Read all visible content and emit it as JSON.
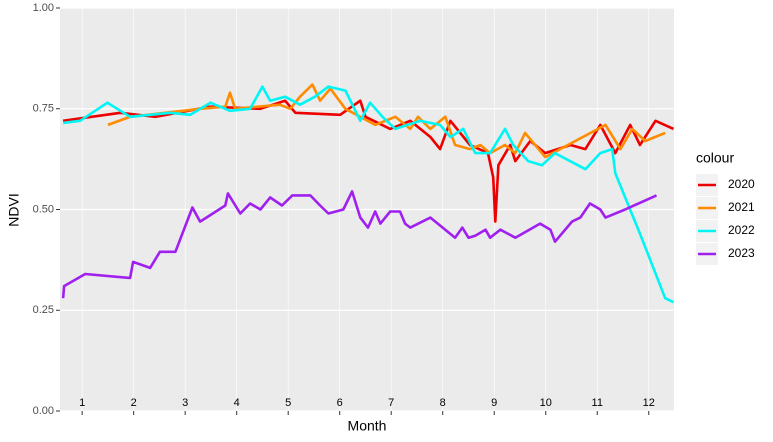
{
  "chart_data": {
    "type": "line",
    "xlabel": "Month",
    "ylabel": "NDVI",
    "legend_title": "colour",
    "xlim": [
      0.57,
      12.49
    ],
    "xticks": [
      1,
      2,
      3,
      4,
      5,
      6,
      7,
      8,
      9,
      10,
      11,
      12
    ],
    "ylim": [
      0,
      1
    ],
    "yticks": [
      {
        "value": 0,
        "label": "0.00"
      },
      {
        "value": 0.25,
        "label": "0.25"
      },
      {
        "value": 0.5,
        "label": "0.50"
      },
      {
        "value": 0.75,
        "label": "0.75"
      },
      {
        "value": 1,
        "label": "1.00"
      }
    ],
    "grid": true,
    "legend": "right",
    "series": [
      {
        "name": "2020",
        "color": "#ee0000",
        "x": [
          0.63,
          1.74,
          2.42,
          3.49,
          4.46,
          4.94,
          5.14,
          6.01,
          6.4,
          6.5,
          6.98,
          7.37,
          7.76,
          7.95,
          8.15,
          8.53,
          8.88,
          8.98,
          9.02,
          9.08,
          9.31,
          9.41,
          9.7,
          9.99,
          10.48,
          10.77,
          11.06,
          11.35,
          11.64,
          11.83,
          12.13,
          12.48
        ],
        "values": [
          0.72,
          0.74,
          0.73,
          0.755,
          0.75,
          0.77,
          0.74,
          0.735,
          0.77,
          0.73,
          0.7,
          0.72,
          0.68,
          0.65,
          0.72,
          0.66,
          0.64,
          0.58,
          0.47,
          0.61,
          0.66,
          0.62,
          0.67,
          0.64,
          0.66,
          0.65,
          0.71,
          0.64,
          0.71,
          0.66,
          0.72,
          0.7
        ]
      },
      {
        "name": "2021",
        "color": "#ff8c00",
        "x": [
          1.5,
          1.93,
          3.29,
          3.78,
          3.87,
          3.97,
          4.84,
          5.04,
          5.23,
          5.47,
          5.62,
          5.82,
          6.11,
          6.69,
          7.08,
          7.37,
          7.52,
          7.76,
          8.05,
          8.24,
          8.53,
          8.73,
          8.92,
          9.21,
          9.41,
          9.6,
          9.99,
          11.16,
          11.45,
          11.68,
          11.93,
          12.32
        ],
        "values": [
          0.71,
          0.73,
          0.75,
          0.755,
          0.79,
          0.75,
          0.76,
          0.75,
          0.78,
          0.81,
          0.77,
          0.8,
          0.75,
          0.71,
          0.73,
          0.7,
          0.73,
          0.7,
          0.73,
          0.66,
          0.65,
          0.66,
          0.64,
          0.66,
          0.64,
          0.69,
          0.63,
          0.71,
          0.65,
          0.7,
          0.67,
          0.69
        ]
      },
      {
        "name": "2022",
        "color": "#00f5f5",
        "x": [
          0.63,
          0.96,
          1.49,
          1.93,
          2.71,
          3.1,
          3.49,
          3.87,
          4.26,
          4.5,
          4.65,
          4.94,
          5.23,
          5.52,
          5.78,
          6.11,
          6.4,
          6.59,
          6.83,
          7.08,
          7.56,
          7.95,
          8.15,
          8.4,
          8.63,
          8.92,
          9.21,
          9.37,
          9.66,
          9.93,
          10.18,
          10.77,
          11.06,
          11.29,
          11.35,
          11.83,
          12.32,
          12.48
        ],
        "values": [
          0.715,
          0.72,
          0.765,
          0.73,
          0.74,
          0.735,
          0.765,
          0.745,
          0.75,
          0.805,
          0.77,
          0.78,
          0.76,
          0.78,
          0.805,
          0.795,
          0.72,
          0.765,
          0.73,
          0.7,
          0.72,
          0.71,
          0.68,
          0.7,
          0.64,
          0.64,
          0.7,
          0.66,
          0.62,
          0.61,
          0.64,
          0.6,
          0.64,
          0.65,
          0.59,
          0.44,
          0.28,
          0.27
        ]
      },
      {
        "name": "2023",
        "color": "#a020f0",
        "x": [
          0.63,
          0.65,
          1.06,
          1.93,
          1.99,
          2.32,
          2.51,
          2.81,
          3.14,
          3.29,
          3.78,
          3.83,
          4.07,
          4.26,
          4.46,
          4.65,
          4.88,
          5.08,
          5.43,
          5.62,
          5.78,
          6.07,
          6.24,
          6.4,
          6.55,
          6.69,
          6.79,
          6.98,
          7.17,
          7.27,
          7.37,
          7.76,
          8.24,
          8.38,
          8.5,
          8.63,
          8.83,
          8.92,
          9.12,
          9.41,
          9.89,
          10.09,
          10.18,
          10.51,
          10.67,
          10.86,
          11.06,
          11.16,
          11.54,
          12.15
        ],
        "values": [
          0.28,
          0.31,
          0.34,
          0.33,
          0.37,
          0.355,
          0.395,
          0.395,
          0.505,
          0.47,
          0.51,
          0.54,
          0.49,
          0.515,
          0.5,
          0.53,
          0.51,
          0.535,
          0.535,
          0.51,
          0.49,
          0.5,
          0.545,
          0.48,
          0.455,
          0.495,
          0.465,
          0.495,
          0.495,
          0.465,
          0.455,
          0.48,
          0.43,
          0.455,
          0.43,
          0.435,
          0.45,
          0.43,
          0.45,
          0.43,
          0.465,
          0.45,
          0.42,
          0.47,
          0.48,
          0.515,
          0.5,
          0.48,
          0.5,
          0.535
        ]
      }
    ]
  }
}
